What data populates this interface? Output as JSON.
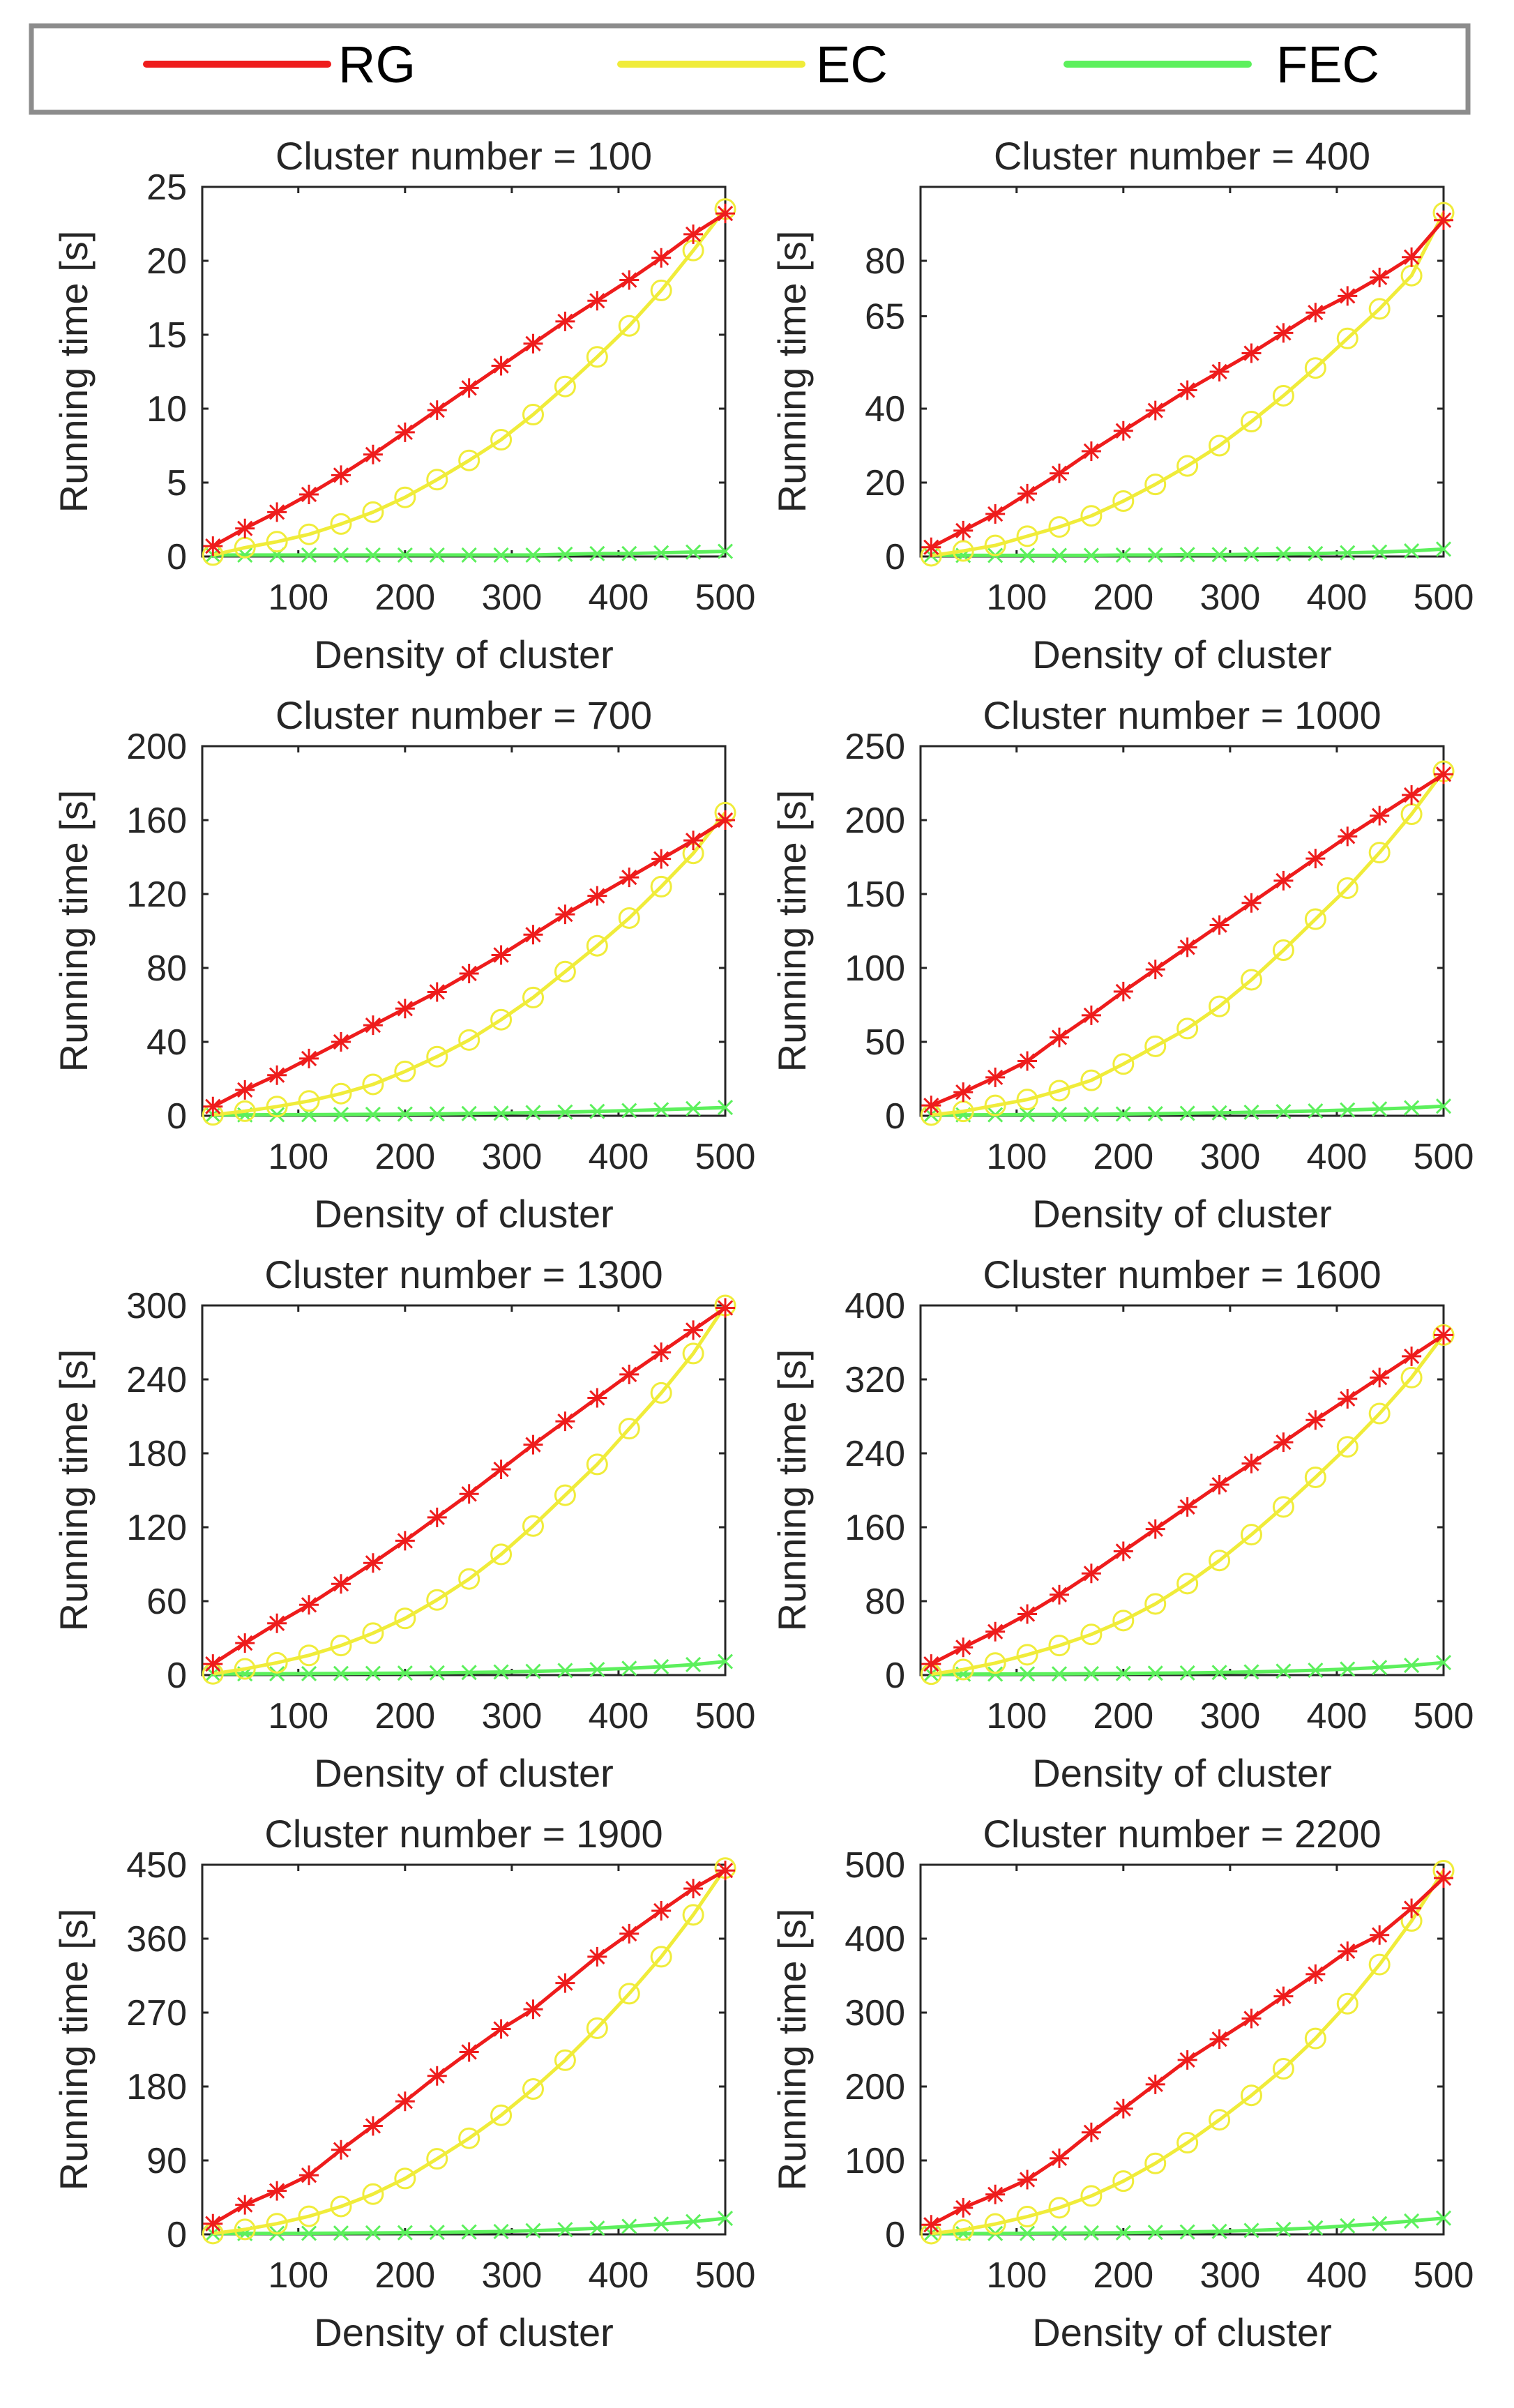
{
  "legend": {
    "entries": [
      {
        "name": "RG",
        "color": "#ee1c1c"
      },
      {
        "name": "EC",
        "color": "#f0ec3a"
      },
      {
        "name": "FEC",
        "color": "#5cf05c"
      }
    ]
  },
  "chart_data": [
    {
      "type": "line",
      "title": "Cluster number = 100",
      "xlabel": "Density of cluster",
      "ylabel": "Running time [s]",
      "xlim": [
        10,
        500
      ],
      "ylim": [
        0,
        25
      ],
      "xticks": [
        100,
        200,
        300,
        400,
        500
      ],
      "yticks": [
        0,
        5,
        10,
        15,
        20,
        25
      ],
      "x": [
        20,
        50,
        80,
        110,
        140,
        170,
        200,
        230,
        260,
        290,
        320,
        350,
        380,
        410,
        440,
        470,
        500
      ],
      "series": [
        {
          "name": "RG",
          "values": [
            0.7,
            1.9,
            3.0,
            4.2,
            5.5,
            6.9,
            8.4,
            9.9,
            11.4,
            12.9,
            14.4,
            15.9,
            17.3,
            18.7,
            20.2,
            21.8,
            23.2
          ]
        },
        {
          "name": "EC",
          "values": [
            0.1,
            0.6,
            1.0,
            1.5,
            2.2,
            3.0,
            4.0,
            5.2,
            6.5,
            7.9,
            9.6,
            11.5,
            13.5,
            15.6,
            18.0,
            20.7,
            23.5
          ]
        },
        {
          "name": "FEC",
          "values": [
            0.1,
            0.1,
            0.1,
            0.1,
            0.1,
            0.1,
            0.1,
            0.1,
            0.1,
            0.1,
            0.1,
            0.15,
            0.2,
            0.2,
            0.25,
            0.3,
            0.35
          ]
        }
      ]
    },
    {
      "type": "line",
      "title": "Cluster number = 400",
      "xlabel": "Density of cluster",
      "ylabel": "Running time [s]",
      "xlim": [
        10,
        500
      ],
      "ylim": [
        0,
        100
      ],
      "xticks": [
        100,
        200,
        300,
        400,
        500
      ],
      "yticks": [
        0,
        20,
        40,
        65,
        80
      ],
      "x": [
        20,
        50,
        80,
        110,
        140,
        170,
        200,
        230,
        260,
        290,
        320,
        350,
        380,
        410,
        440,
        470,
        500
      ],
      "series": [
        {
          "name": "RG",
          "values": [
            2.5,
            7.0,
            11.5,
            17.0,
            22.5,
            28.5,
            34.0,
            39.5,
            45.0,
            50.0,
            55.0,
            60.5,
            66.0,
            70.5,
            75.5,
            81.0,
            91.0
          ]
        },
        {
          "name": "EC",
          "values": [
            0.2,
            1.5,
            3.0,
            5.5,
            8.0,
            11.0,
            15.0,
            19.5,
            24.5,
            30.0,
            36.5,
            43.5,
            51.0,
            59.0,
            67.0,
            76.0,
            93.0
          ]
        },
        {
          "name": "FEC",
          "values": [
            0.3,
            0.3,
            0.3,
            0.3,
            0.3,
            0.3,
            0.4,
            0.4,
            0.5,
            0.5,
            0.6,
            0.7,
            0.8,
            1.0,
            1.2,
            1.5,
            2.0
          ]
        }
      ]
    },
    {
      "type": "line",
      "title": "Cluster number = 700",
      "xlabel": "Density of cluster",
      "ylabel": "Running time [s]",
      "xlim": [
        10,
        500
      ],
      "ylim": [
        0,
        200
      ],
      "xticks": [
        100,
        200,
        300,
        400,
        500
      ],
      "yticks": [
        0,
        40,
        80,
        120,
        160,
        200
      ],
      "x": [
        20,
        50,
        80,
        110,
        140,
        170,
        200,
        230,
        260,
        290,
        320,
        350,
        380,
        410,
        440,
        470,
        500
      ],
      "series": [
        {
          "name": "RG",
          "values": [
            5,
            14,
            22,
            31,
            40,
            49,
            58,
            67,
            77,
            87,
            98,
            109,
            119,
            129,
            139,
            149,
            160
          ]
        },
        {
          "name": "EC",
          "values": [
            0.5,
            2.5,
            5,
            8,
            12,
            17,
            24,
            32,
            41,
            52,
            64,
            78,
            92,
            107,
            124,
            142,
            164
          ]
        },
        {
          "name": "FEC",
          "values": [
            0.5,
            0.5,
            0.6,
            0.6,
            0.7,
            0.8,
            0.9,
            1.0,
            1.2,
            1.4,
            1.7,
            2.0,
            2.4,
            2.8,
            3.3,
            3.9,
            4.5
          ]
        }
      ]
    },
    {
      "type": "line",
      "title": "Cluster number = 1000",
      "xlabel": "Density of cluster",
      "ylabel": "Running time [s]",
      "xlim": [
        10,
        500
      ],
      "ylim": [
        0,
        250
      ],
      "xticks": [
        100,
        200,
        300,
        400,
        500
      ],
      "yticks": [
        0,
        50,
        100,
        150,
        200,
        250
      ],
      "x": [
        20,
        50,
        80,
        110,
        140,
        170,
        200,
        230,
        260,
        290,
        320,
        350,
        380,
        410,
        440,
        470,
        500
      ],
      "series": [
        {
          "name": "RG",
          "values": [
            7,
            16,
            26,
            37,
            53,
            68,
            84,
            99,
            114,
            129,
            144,
            159,
            174,
            189,
            203,
            217,
            231
          ]
        },
        {
          "name": "EC",
          "values": [
            0.5,
            3,
            7,
            11,
            17,
            24,
            35,
            47,
            59,
            74,
            92,
            112,
            133,
            154,
            178,
            204,
            233
          ]
        },
        {
          "name": "FEC",
          "values": [
            0.6,
            0.6,
            0.7,
            0.8,
            0.9,
            1.0,
            1.2,
            1.4,
            1.7,
            2.0,
            2.4,
            2.8,
            3.3,
            3.9,
            4.6,
            5.4,
            6.5
          ]
        }
      ]
    },
    {
      "type": "line",
      "title": "Cluster number = 1300",
      "xlabel": "Density of cluster",
      "ylabel": "Running time [s]",
      "xlim": [
        10,
        500
      ],
      "ylim": [
        0,
        300
      ],
      "xticks": [
        100,
        200,
        300,
        400,
        500
      ],
      "yticks": [
        0,
        60,
        120,
        180,
        240,
        300
      ],
      "x": [
        20,
        50,
        80,
        110,
        140,
        170,
        200,
        230,
        260,
        290,
        320,
        350,
        380,
        410,
        440,
        470,
        500
      ],
      "series": [
        {
          "name": "RG",
          "values": [
            9,
            26,
            42,
            57,
            74,
            91,
            109,
            128,
            147,
            167,
            187,
            206,
            225,
            244,
            262,
            280,
            298
          ]
        },
        {
          "name": "EC",
          "values": [
            1,
            5,
            10,
            16,
            24,
            34,
            46,
            61,
            78,
            98,
            121,
            146,
            171,
            200,
            229,
            261,
            300
          ]
        },
        {
          "name": "FEC",
          "values": [
            1,
            1,
            1.1,
            1.2,
            1.3,
            1.4,
            1.6,
            1.8,
            2.1,
            2.5,
            3.0,
            3.7,
            4.5,
            5.5,
            6.8,
            8.5,
            11
          ]
        }
      ]
    },
    {
      "type": "line",
      "title": "Cluster number = 1600",
      "xlabel": "Density of cluster",
      "ylabel": "Running time [s]",
      "xlim": [
        10,
        500
      ],
      "ylim": [
        0,
        400
      ],
      "xticks": [
        100,
        200,
        300,
        400,
        500
      ],
      "yticks": [
        0,
        80,
        160,
        240,
        320,
        400
      ],
      "x": [
        20,
        50,
        80,
        110,
        140,
        170,
        200,
        230,
        260,
        290,
        320,
        350,
        380,
        410,
        440,
        470,
        500
      ],
      "series": [
        {
          "name": "RG",
          "values": [
            12,
            30,
            47,
            66,
            87,
            110,
            134,
            158,
            182,
            206,
            229,
            252,
            276,
            299,
            322,
            345,
            368
          ]
        },
        {
          "name": "EC",
          "values": [
            1,
            6,
            13,
            22,
            32,
            44,
            59,
            77,
            99,
            124,
            152,
            182,
            214,
            247,
            283,
            322,
            368
          ]
        },
        {
          "name": "FEC",
          "values": [
            1,
            1,
            1.1,
            1.2,
            1.3,
            1.5,
            1.7,
            2.0,
            2.3,
            2.8,
            3.4,
            4.2,
            5.2,
            6.5,
            8.2,
            10.5,
            13.5
          ]
        }
      ]
    },
    {
      "type": "line",
      "title": "Cluster number = 1900",
      "xlabel": "Density of cluster",
      "ylabel": "Running time [s]",
      "xlim": [
        10,
        500
      ],
      "ylim": [
        0,
        450
      ],
      "xticks": [
        100,
        200,
        300,
        400,
        500
      ],
      "yticks": [
        0,
        90,
        180,
        270,
        360,
        450
      ],
      "x": [
        20,
        50,
        80,
        110,
        140,
        170,
        200,
        230,
        260,
        290,
        320,
        350,
        380,
        410,
        440,
        470,
        500
      ],
      "series": [
        {
          "name": "RG",
          "values": [
            13,
            36,
            53,
            72,
            103,
            132,
            162,
            193,
            222,
            250,
            274,
            306,
            338,
            366,
            394,
            421,
            443
          ]
        },
        {
          "name": "EC",
          "values": [
            1,
            6,
            13,
            22,
            34,
            49,
            68,
            92,
            117,
            145,
            177,
            212,
            251,
            293,
            338,
            389,
            446
          ]
        },
        {
          "name": "FEC",
          "values": [
            1,
            1,
            1.2,
            1.3,
            1.5,
            1.7,
            2.0,
            2.4,
            2.9,
            3.5,
            4.5,
            5.8,
            7.5,
            9.8,
            12.5,
            15.5,
            19.5
          ]
        }
      ]
    },
    {
      "type": "line",
      "title": "Cluster number = 2200",
      "xlabel": "Density of cluster",
      "ylabel": "Running time [s]",
      "xlim": [
        10,
        500
      ],
      "ylim": [
        0,
        500
      ],
      "xticks": [
        100,
        200,
        300,
        400,
        500
      ],
      "yticks": [
        0,
        100,
        200,
        300,
        400,
        500
      ],
      "x": [
        20,
        50,
        80,
        110,
        140,
        170,
        200,
        230,
        260,
        290,
        320,
        350,
        380,
        410,
        440,
        470,
        500
      ],
      "series": [
        {
          "name": "RG",
          "values": [
            13,
            36,
            54,
            74,
            103,
            138,
            170,
            203,
            236,
            264,
            292,
            322,
            352,
            383,
            405,
            441,
            482
          ]
        },
        {
          "name": "EC",
          "values": [
            1,
            6,
            14,
            24,
            36,
            52,
            72,
            96,
            124,
            155,
            188,
            224,
            265,
            312,
            365,
            424,
            492
          ]
        },
        {
          "name": "FEC",
          "values": [
            1,
            1,
            1.2,
            1.4,
            1.6,
            1.9,
            2.2,
            2.7,
            3.3,
            4.1,
            5.2,
            6.8,
            8.8,
            11.5,
            14.5,
            18,
            22
          ]
        }
      ]
    }
  ]
}
